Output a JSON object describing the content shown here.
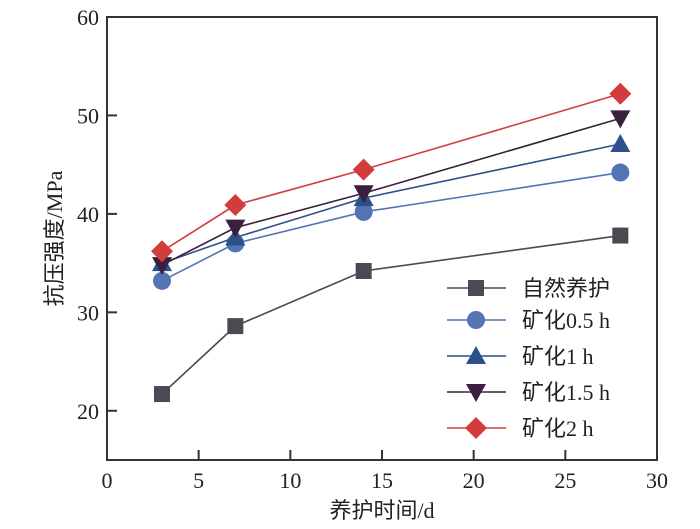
{
  "chart_data": {
    "type": "line",
    "title": "",
    "xlabel": "养护时间/d",
    "ylabel": "抗压强度/MPa",
    "xlim": [
      0,
      30
    ],
    "ylim": [
      15,
      60
    ],
    "xticks": [
      0,
      5,
      10,
      15,
      20,
      25,
      30
    ],
    "yticks": [
      20,
      30,
      40,
      50,
      60
    ],
    "grid": false,
    "legend_position": "bottom-right",
    "x": [
      3,
      7,
      14,
      28
    ],
    "series": [
      {
        "name": "自然养护",
        "marker": "square",
        "color": "#4a4a52",
        "values": [
          21.7,
          28.6,
          34.2,
          37.8
        ]
      },
      {
        "name": "矿化0.5 h",
        "marker": "circle",
        "color": "#5374b4",
        "values": [
          33.2,
          37.0,
          40.2,
          44.2
        ]
      },
      {
        "name": "矿化1 h",
        "marker": "triangle-up",
        "color": "#2d4f8a",
        "values": [
          35.0,
          37.6,
          41.6,
          47.1
        ]
      },
      {
        "name": "矿化1.5 h",
        "marker": "triangle-down",
        "color": "#3a1f3f",
        "values": [
          34.8,
          38.6,
          42.1,
          49.7
        ]
      },
      {
        "name": "矿化2 h",
        "marker": "diamond",
        "color": "#d23c3c",
        "values": [
          36.2,
          40.9,
          44.5,
          52.2
        ]
      }
    ]
  }
}
